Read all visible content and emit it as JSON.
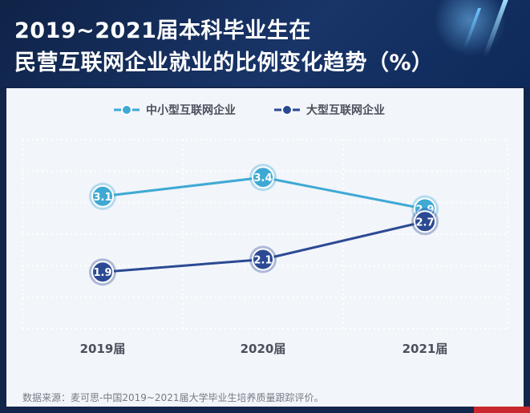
{
  "title": {
    "line1": "2019~2021届本科毕业生在",
    "line2": "民营互联网企业就业的比例变化趋势（%）"
  },
  "source": "数据来源：麦可思-中国2019~2021届大学毕业生培养质量跟踪评价。",
  "colors": {
    "background": "#12254a",
    "panel": "#f2f5fa",
    "series_small": "#3fa9d4",
    "series_large": "#2c4a93",
    "accent_red": "#c8282d"
  },
  "chart_data": {
    "type": "line",
    "categories": [
      "2019届",
      "2020届",
      "2021届"
    ],
    "series": [
      {
        "name": "中小型互联网企业",
        "values": [
          3.1,
          3.4,
          2.9
        ],
        "color": "#3fa9d4"
      },
      {
        "name": "大型互联网企业",
        "values": [
          1.9,
          2.1,
          2.7
        ],
        "color": "#2c4a93"
      }
    ],
    "data_labels": true,
    "legend_position": "top-center",
    "grid": "dotted",
    "ylim": [
      1.0,
      4.0
    ]
  }
}
